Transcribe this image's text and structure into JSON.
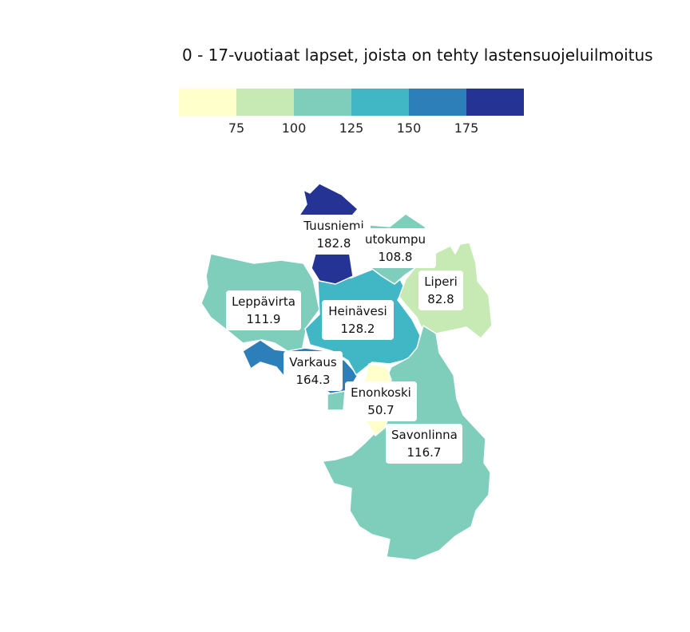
{
  "title": "0 - 17-vuotiaat lapset, joista on tehty lastensuojeluilmoitus",
  "legend": {
    "colors": [
      "#ffffcc",
      "#c7e9b4",
      "#7fcdbb",
      "#41b6c4",
      "#2c7fb8",
      "#253494"
    ],
    "ticks": [
      "75",
      "100",
      "125",
      "150",
      "175"
    ]
  },
  "regions": [
    {
      "id": "tuusniemi",
      "name": "Tuusniemi",
      "value": "182.8",
      "color": "#253494"
    },
    {
      "id": "outokumpu",
      "name": "Outokumpu",
      "display_name": "utokumpu",
      "value": "108.8",
      "color": "#7fcdbb"
    },
    {
      "id": "liperi",
      "name": "Liperi",
      "value": "82.8",
      "color": "#c7e9b4"
    },
    {
      "id": "leppavirta",
      "name": "Leppävirta",
      "value": "111.9",
      "color": "#7fcdbb"
    },
    {
      "id": "heinavesi",
      "name": "Heinävesi",
      "value": "128.2",
      "color": "#41b6c4"
    },
    {
      "id": "varkaus",
      "name": "Varkaus",
      "value": "164.3",
      "color": "#2c7fb8"
    },
    {
      "id": "enonkoski",
      "name": "Enonkoski",
      "value": "50.7",
      "color": "#ffffcc"
    },
    {
      "id": "savonlinna",
      "name": "Savonlinna",
      "value": "116.7",
      "color": "#7fcdbb"
    }
  ]
}
